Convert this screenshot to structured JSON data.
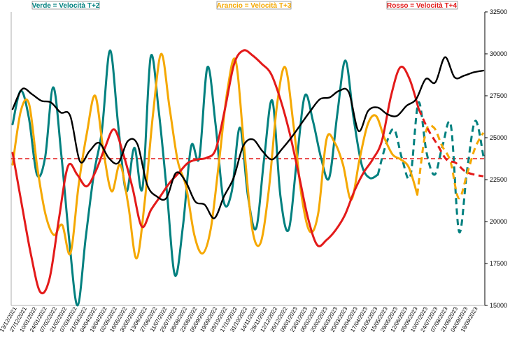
{
  "chart_data": {
    "type": "line",
    "title": "",
    "xlabel": "",
    "ylabel": "",
    "right_axis": {
      "ylim": [
        15000,
        32500
      ],
      "ticks": [
        "15000",
        "17500",
        "20000",
        "22500",
        "25000",
        "27500",
        "30000",
        "32500"
      ]
    },
    "grid": false,
    "legend": {
      "placement": "top",
      "entries": [
        {
          "label": "Verde = Velocità T+2",
          "color": "#00807f"
        },
        {
          "label": "Arancio = Velocità T+3",
          "color": "#f5a800"
        },
        {
          "label": "Rosso = Velocità T+4",
          "color": "#e31a1a"
        }
      ]
    },
    "reference_line": {
      "value": 23750,
      "color": "#e31a1a",
      "style": "dashed"
    },
    "x_labels": [
      "13/12/2021",
      "27/12/2021",
      "10/01/2022",
      "24/01/2022",
      "07/02/2022",
      "21/02/2022",
      "07/03/2022",
      "21/03/2022",
      "04/04/2022",
      "18/04/2022",
      "02/05/2022",
      "16/05/2022",
      "30/05/2022",
      "13/06/2022",
      "27/06/2022",
      "11/07/2022",
      "25/07/2022",
      "08/08/2022",
      "22/08/2022",
      "05/09/2022",
      "19/09/2022",
      "03/10/2022",
      "17/10/2022",
      "31/10/2022",
      "14/11/2022",
      "28/11/2022",
      "12/12/2022",
      "26/12/2022",
      "09/01/2023",
      "23/01/2023",
      "06/02/2023",
      "20/02/2023",
      "06/03/2023",
      "20/03/2023",
      "03/04/2023",
      "17/04/2023",
      "01/05/2023",
      "15/05/2023",
      "29/05/2023",
      "12/06/2023",
      "26/06/2023",
      "10/07/2023",
      "24/07/2023",
      "07/08/2023",
      "21/08/2023",
      "04/09/2023",
      "18/09/2023"
    ],
    "series": [
      {
        "name": "Verde = Velocità T+2",
        "color": "#00807f",
        "axis": "right",
        "style": "solid",
        "dashed_from": 45,
        "values": [
          25800,
          27800,
          26200,
          22800,
          23800,
          28000,
          24000,
          18800,
          15000,
          19000,
          22800,
          25400,
          30200,
          25800,
          21800,
          24400,
          22000,
          29800,
          26600,
          21800,
          16800,
          19800,
          24500,
          23800,
          29200,
          25800,
          21200,
          21800,
          25600,
          21500,
          19600,
          23800,
          27200,
          21500,
          19500,
          23600,
          27500,
          26000,
          23800,
          22600,
          26400,
          29600,
          26200,
          23400,
          22600,
          22800,
          24600,
          25500,
          23700,
          22700,
          27100,
          24100,
          22800,
          24600,
          25700,
          19400,
          23100,
          26000,
          23900
        ]
      },
      {
        "name": "Arancio = Velocità T+3",
        "color": "#f5a800",
        "axis": "right",
        "style": "solid",
        "dashed_from": 49,
        "values": [
          23400,
          26600,
          27000,
          23200,
          20400,
          19200,
          19800,
          18100,
          22200,
          25300,
          27500,
          24200,
          21800,
          23400,
          21000,
          17800,
          21200,
          26400,
          30000,
          26800,
          23600,
          22100,
          19200,
          18100,
          19600,
          23600,
          27800,
          29600,
          24600,
          19600,
          18700,
          21800,
          26900,
          29200,
          25800,
          21500,
          19400,
          20500,
          24900,
          24700,
          23400,
          21300,
          23700,
          25800,
          26300,
          25000,
          24000,
          23700,
          23200,
          21600,
          25300,
          25600,
          24500,
          23600,
          21400,
          22800,
          24400,
          25300
        ]
      },
      {
        "name": "Rosso = Velocità T+4",
        "color": "#e31a1a",
        "axis": "right",
        "style": "solid",
        "dashed_from": 44,
        "values": [
          24100,
          21000,
          18000,
          15800,
          16600,
          20100,
          23300,
          22800,
          22100,
          23000,
          24400,
          25500,
          24000,
          22000,
          19700,
          20700,
          21500,
          22300,
          22900,
          23500,
          23700,
          23800,
          24300,
          26700,
          29400,
          30200,
          29900,
          29400,
          28800,
          27300,
          25300,
          22800,
          20200,
          18600,
          18900,
          19500,
          20400,
          21800,
          22900,
          23700,
          24800,
          27500,
          29200,
          28500,
          26700,
          25500,
          24600,
          23700,
          23500,
          23000,
          22800,
          22700
        ]
      },
      {
        "name": "",
        "color": "#000000",
        "axis": "right",
        "style": "solid",
        "values": [
          26700,
          27900,
          27600,
          27200,
          27100,
          26500,
          26300,
          23600,
          24200,
          24700,
          23800,
          23500,
          24800,
          24600,
          22200,
          21500,
          21400,
          22900,
          22400,
          21200,
          21000,
          20200,
          21500,
          22600,
          24500,
          24900,
          24200,
          23700,
          24300,
          25000,
          25800,
          26600,
          27300,
          27400,
          27800,
          27700,
          25400,
          26600,
          26800,
          26400,
          26300,
          26900,
          27300,
          28500,
          28300,
          29800,
          28600,
          28700,
          28900,
          29000
        ]
      }
    ]
  }
}
